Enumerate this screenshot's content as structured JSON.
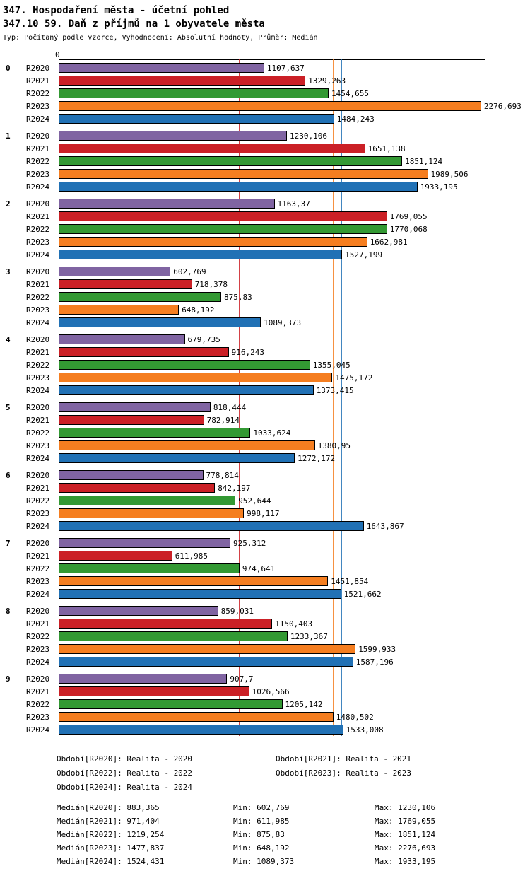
{
  "header": {
    "title": "347. Hospodaření města - účetní pohled",
    "subtitle": "347.10 59. Daň z příjmů na 1 obyvatele města",
    "meta": "Typ: Počítaný podle vzorce, Vyhodnocení: Absolutní hodnoty, Průměr: Medián"
  },
  "chart_data": {
    "type": "bar",
    "orientation": "horizontal",
    "axis_origin_label": "0",
    "axis_max": 2300,
    "grid": false,
    "series_order": [
      "R2020",
      "R2021",
      "R2022",
      "R2023",
      "R2024"
    ],
    "series_colors": {
      "R2020": "#8064A2",
      "R2021": "#CB2026",
      "R2022": "#339933",
      "R2023": "#F57E20",
      "R2024": "#2171B5"
    },
    "medians": {
      "R2020": 883.365,
      "R2021": 971.404,
      "R2022": 1219.254,
      "R2023": 1477.837,
      "R2024": 1524.431
    },
    "groups": [
      {
        "label": "0",
        "values": [
          "1107,637",
          "1329,263",
          "1454,655",
          "2276,693",
          "1484,243"
        ]
      },
      {
        "label": "1",
        "values": [
          "1230,106",
          "1651,138",
          "1851,124",
          "1989,506",
          "1933,195"
        ]
      },
      {
        "label": "2",
        "values": [
          "1163,37",
          "1769,055",
          "1770,068",
          "1662,981",
          "1527,199"
        ]
      },
      {
        "label": "3",
        "values": [
          "602,769",
          "718,378",
          "875,83",
          "648,192",
          "1089,373"
        ]
      },
      {
        "label": "4",
        "values": [
          "679,735",
          "916,243",
          "1355,045",
          "1475,172",
          "1373,415"
        ]
      },
      {
        "label": "5",
        "values": [
          "818,444",
          "782,914",
          "1033,624",
          "1380,95",
          "1272,172"
        ]
      },
      {
        "label": "6",
        "values": [
          "778,814",
          "842,197",
          "952,644",
          "998,117",
          "1643,867"
        ]
      },
      {
        "label": "7",
        "values": [
          "925,312",
          "611,985",
          "974,641",
          "1451,854",
          "1521,662"
        ]
      },
      {
        "label": "8",
        "values": [
          "859,031",
          "1150,403",
          "1233,367",
          "1599,933",
          "1587,196"
        ]
      },
      {
        "label": "9",
        "values": [
          "907,7",
          "1026,566",
          "1205,142",
          "1480,502",
          "1533,008"
        ]
      }
    ]
  },
  "legend": [
    "Období[R2020]: Realita - 2020",
    "Období[R2021]: Realita - 2021",
    "Období[R2022]: Realita - 2022",
    "Období[R2023]: Realita - 2023",
    "Období[R2024]: Realita - 2024"
  ],
  "stats": [
    {
      "median": "Medián[R2020]: 883,365",
      "min": "Min: 602,769",
      "max": "Max: 1230,106"
    },
    {
      "median": "Medián[R2021]: 971,404",
      "min": "Min: 611,985",
      "max": "Max: 1769,055"
    },
    {
      "median": "Medián[R2022]: 1219,254",
      "min": "Min: 875,83",
      "max": "Max: 1851,124"
    },
    {
      "median": "Medián[R2023]: 1477,837",
      "min": "Min: 648,192",
      "max": "Max: 2276,693"
    },
    {
      "median": "Medián[R2024]: 1524,431",
      "min": "Min: 1089,373",
      "max": "Max: 1933,195"
    }
  ]
}
